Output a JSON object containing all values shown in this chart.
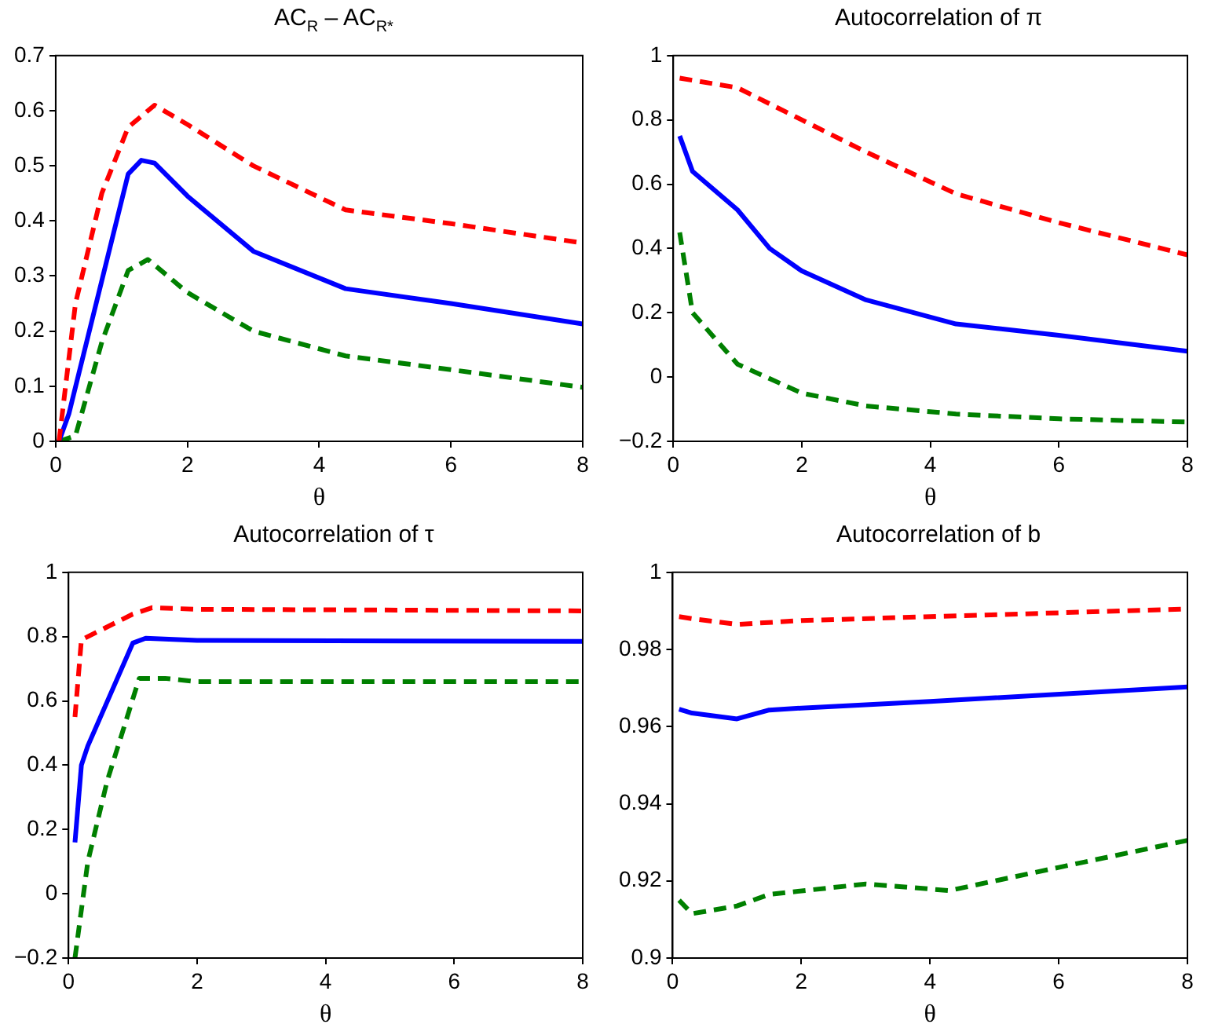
{
  "chart_data": [
    {
      "type": "line",
      "title": "AC$_{R}$ – AC$_{R*}$",
      "xlabel": "θ",
      "xlim": [
        0,
        8
      ],
      "xticks": [
        0,
        2,
        4,
        6,
        8
      ],
      "ylim": [
        0,
        0.7
      ],
      "yticks": [
        0,
        0.1,
        0.2,
        0.3,
        0.4,
        0.5,
        0.6,
        0.7
      ],
      "grid": false,
      "legend": false,
      "marker": "none",
      "series": [
        {
          "color": "#ff0000",
          "line_style": "dashed",
          "x": [
            0.05,
            0.3,
            0.7,
            1.1,
            1.5,
            2,
            3,
            4.4,
            6,
            8
          ],
          "values": [
            0,
            0.25,
            0.45,
            0.57,
            0.61,
            0.575,
            0.5,
            0.42,
            0.395,
            0.36
          ]
        },
        {
          "color": "#0000ff",
          "line_style": "solid",
          "x": [
            0.05,
            0.2,
            1.1,
            1.3,
            1.5,
            2,
            3,
            4.4,
            6,
            8
          ],
          "values": [
            0,
            0.05,
            0.485,
            0.51,
            0.505,
            0.445,
            0.345,
            0.277,
            0.25,
            0.213
          ]
        },
        {
          "color": "#008000",
          "line_style": "dashed",
          "x": [
            0.05,
            0.3,
            0.7,
            1.1,
            1.4,
            2,
            3,
            4.4,
            6,
            8
          ],
          "values": [
            0,
            0.01,
            0.18,
            0.31,
            0.33,
            0.27,
            0.2,
            0.155,
            0.13,
            0.098
          ]
        }
      ]
    },
    {
      "type": "line",
      "title": "Autocorrelation of π",
      "xlabel": "θ",
      "xlim": [
        0,
        8
      ],
      "xticks": [
        0,
        2,
        4,
        6,
        8
      ],
      "ylim": [
        -0.2,
        1
      ],
      "yticks": [
        {
          "value": -0.2,
          "label": "−0.2"
        },
        0,
        0.2,
        0.4,
        0.6,
        0.8,
        1
      ],
      "grid": false,
      "legend": false,
      "marker": "none",
      "series": [
        {
          "color": "#ff0000",
          "line_style": "dashed",
          "x": [
            0.1,
            1,
            2,
            3,
            4.4,
            6,
            8
          ],
          "values": [
            0.93,
            0.9,
            0.8,
            0.7,
            0.57,
            0.48,
            0.38
          ]
        },
        {
          "color": "#0000ff",
          "line_style": "solid",
          "x": [
            0.1,
            0.3,
            1,
            1.5,
            2,
            3,
            4.4,
            6,
            8
          ],
          "values": [
            0.75,
            0.64,
            0.52,
            0.4,
            0.33,
            0.24,
            0.165,
            0.13,
            0.08
          ]
        },
        {
          "color": "#008000",
          "line_style": "dashed",
          "x": [
            0.1,
            0.3,
            1,
            2,
            3,
            4.4,
            6,
            8
          ],
          "values": [
            0.45,
            0.2,
            0.04,
            -0.05,
            -0.09,
            -0.115,
            -0.13,
            -0.14
          ]
        }
      ]
    },
    {
      "type": "line",
      "title": "Autocorrelation of τ",
      "xlabel": "θ",
      "xlim": [
        0,
        8
      ],
      "xticks": [
        0,
        2,
        4,
        6,
        8
      ],
      "ylim": [
        -0.2,
        1
      ],
      "yticks": [
        {
          "value": -0.2,
          "label": "−0.2"
        },
        0,
        0.2,
        0.4,
        0.6,
        0.8,
        1
      ],
      "grid": false,
      "legend": false,
      "marker": "none",
      "series": [
        {
          "color": "#ff0000",
          "line_style": "dashed",
          "x": [
            0.1,
            0.2,
            1,
            1.3,
            2,
            8
          ],
          "values": [
            0.55,
            0.79,
            0.87,
            0.89,
            0.885,
            0.88
          ]
        },
        {
          "color": "#0000ff",
          "line_style": "solid",
          "x": [
            0.1,
            0.2,
            0.3,
            1,
            1.2,
            2,
            8
          ],
          "values": [
            0.16,
            0.4,
            0.46,
            0.78,
            0.795,
            0.788,
            0.785
          ]
        },
        {
          "color": "#008000",
          "line_style": "dashed",
          "x": [
            0.1,
            0.3,
            0.6,
            1.1,
            1.5,
            2,
            8
          ],
          "values": [
            -0.2,
            0.1,
            0.35,
            0.67,
            0.67,
            0.66,
            0.66
          ]
        }
      ]
    },
    {
      "type": "line",
      "title": "Autocorrelation of b",
      "xlabel": "θ",
      "xlim": [
        0,
        8
      ],
      "xticks": [
        0,
        2,
        4,
        6,
        8
      ],
      "ylim": [
        0.9,
        1
      ],
      "yticks": [
        0.9,
        0.92,
        0.94,
        0.96,
        0.98,
        1
      ],
      "grid": false,
      "legend": false,
      "marker": "none",
      "series": [
        {
          "color": "#ff0000",
          "line_style": "dashed",
          "x": [
            0.1,
            0.3,
            1,
            2,
            4,
            8
          ],
          "values": [
            0.9885,
            0.988,
            0.9865,
            0.9875,
            0.9885,
            0.9905
          ]
        },
        {
          "color": "#0000ff",
          "line_style": "solid",
          "x": [
            0.1,
            0.3,
            1,
            1.5,
            2,
            4,
            8
          ],
          "values": [
            0.9645,
            0.9635,
            0.962,
            0.9643,
            0.9648,
            0.9665,
            0.9703
          ]
        },
        {
          "color": "#008000",
          "line_style": "dashed",
          "x": [
            0.1,
            0.3,
            1,
            1.5,
            3,
            4.3,
            6,
            8
          ],
          "values": [
            0.915,
            0.9115,
            0.9135,
            0.9165,
            0.9192,
            0.9175,
            0.9235,
            0.9305
          ]
        }
      ]
    }
  ]
}
